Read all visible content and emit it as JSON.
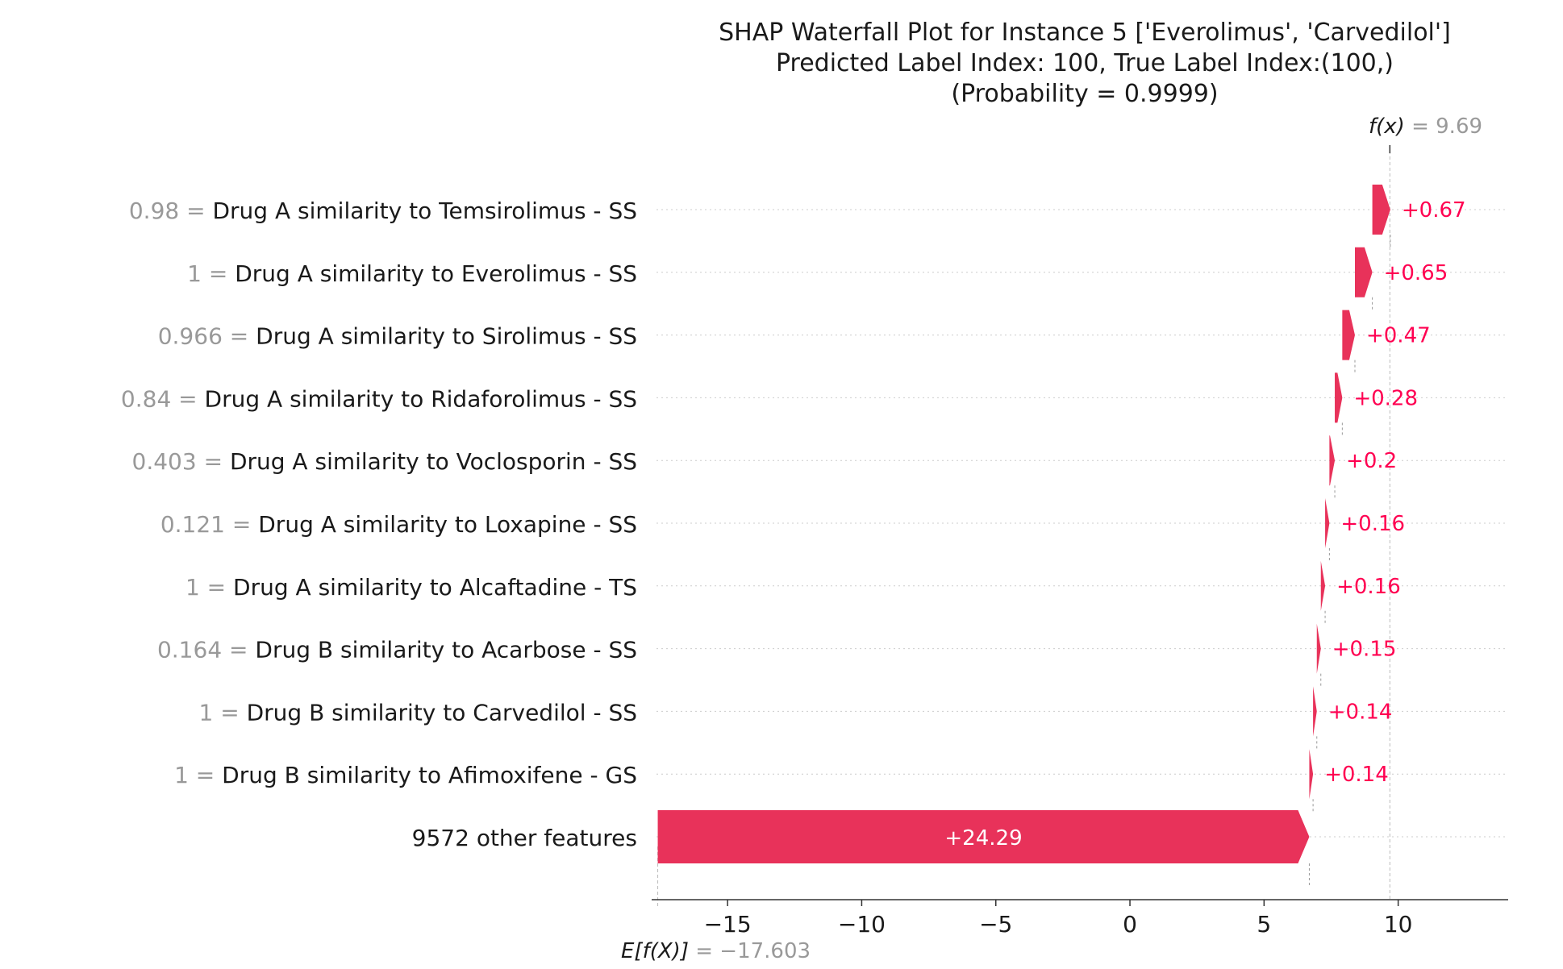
{
  "chart_data": {
    "type": "waterfall",
    "title_lines": [
      "SHAP Waterfall Plot for Instance 5 ['Everolimus', 'Carvedilol']",
      "Predicted Label Index: 100, True Label Index:(100,)",
      "(Probability = 0.9999)"
    ],
    "base_value": {
      "label": "E[f(X)]",
      "value": -17.603,
      "display": "= −17.603"
    },
    "output_value": {
      "label": "f(x)",
      "value": 9.69,
      "display": "= 9.69"
    },
    "features": [
      {
        "value_label": "0.98",
        "name": "Drug A similarity to Temsirolimus - SS",
        "shap": 0.67,
        "shap_label": "+0.67"
      },
      {
        "value_label": "1",
        "name": "Drug A similarity to Everolimus - SS",
        "shap": 0.65,
        "shap_label": "+0.65"
      },
      {
        "value_label": "0.966",
        "name": "Drug A similarity to Sirolimus - SS",
        "shap": 0.47,
        "shap_label": "+0.47"
      },
      {
        "value_label": "0.84",
        "name": "Drug A similarity to Ridaforolimus - SS",
        "shap": 0.28,
        "shap_label": "+0.28"
      },
      {
        "value_label": "0.403",
        "name": "Drug A similarity to Voclosporin - SS",
        "shap": 0.2,
        "shap_label": "+0.2"
      },
      {
        "value_label": "0.121",
        "name": "Drug A similarity to Loxapine - SS",
        "shap": 0.16,
        "shap_label": "+0.16"
      },
      {
        "value_label": "1",
        "name": "Drug A similarity to Alcaftadine - TS",
        "shap": 0.16,
        "shap_label": "+0.16"
      },
      {
        "value_label": "0.164",
        "name": "Drug B similarity to Acarbose - SS",
        "shap": 0.15,
        "shap_label": "+0.15"
      },
      {
        "value_label": "1",
        "name": "Drug B similarity to Carvedilol - SS",
        "shap": 0.14,
        "shap_label": "+0.14"
      },
      {
        "value_label": "1",
        "name": "Drug B similarity to Afimoxifene - GS",
        "shap": 0.14,
        "shap_label": "+0.14"
      },
      {
        "value_label": "",
        "name": "9572 other features",
        "shap": 24.29,
        "shap_label": "+24.29"
      }
    ],
    "x_ticks": [
      -15,
      -10,
      -5,
      0,
      5,
      10
    ],
    "x_tick_labels": [
      "−15",
      "−10",
      "−5",
      "0",
      "5",
      "10"
    ],
    "xlim": [
      -17.65,
      14.1
    ],
    "colors": {
      "positive": "#ff0051",
      "positive_bar": "#e8325a",
      "value_label_gray": "#999999",
      "text": "#1a1a1a",
      "grid_dotted": "#cccccc",
      "axis": "#333333"
    }
  }
}
